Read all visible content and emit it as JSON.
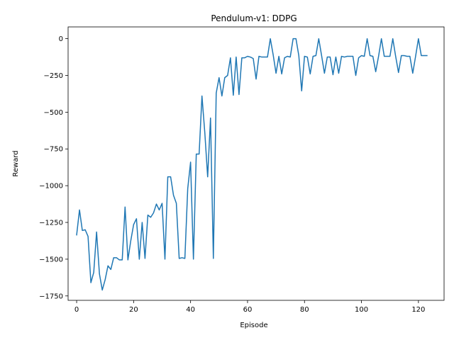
{
  "chart_data": {
    "type": "line",
    "title": "Pendulum-v1: DDPG",
    "xlabel": "Episode",
    "ylabel": "Reward",
    "xlim": [
      -3,
      129
    ],
    "ylim": [
      -1780,
      80
    ],
    "xticks": [
      0,
      20,
      40,
      60,
      80,
      100,
      120
    ],
    "yticks": [
      -1750,
      -1500,
      -1250,
      -1000,
      -750,
      -500,
      -250,
      0
    ],
    "xtick_labels": [
      "0",
      "20",
      "40",
      "60",
      "80",
      "100",
      "120"
    ],
    "ytick_labels": [
      "−1750",
      "−1500",
      "−1250",
      "−1000",
      "−750",
      "−500",
      "−250",
      "0"
    ],
    "grid": false,
    "series": [
      {
        "color": "#1f77b4",
        "x": [
          0,
          1,
          2,
          3,
          4,
          5,
          6,
          7,
          8,
          9,
          10,
          11,
          12,
          13,
          14,
          15,
          16,
          17,
          18,
          19,
          20,
          21,
          22,
          23,
          24,
          25,
          26,
          27,
          28,
          29,
          30,
          31,
          32,
          33,
          34,
          35,
          36,
          37,
          38,
          39,
          40,
          41,
          42,
          43,
          44,
          45,
          46,
          47,
          48,
          49,
          50,
          51,
          52,
          53,
          54,
          55,
          56,
          57,
          58,
          59,
          60,
          61,
          62,
          63,
          64,
          65,
          66,
          67,
          68,
          69,
          70,
          71,
          72,
          73,
          74,
          75,
          76,
          77,
          78,
          79,
          80,
          81,
          82,
          83,
          84,
          85,
          86,
          87,
          88,
          89,
          90,
          91,
          92,
          93,
          94,
          95,
          96,
          97,
          98,
          99,
          100,
          101,
          102,
          103,
          104,
          105,
          106,
          107,
          108,
          109,
          110,
          111,
          112,
          113,
          114,
          115,
          116,
          117,
          118,
          119,
          120,
          121,
          122,
          123
        ],
        "y": [
          -1335,
          -1165,
          -1305,
          -1300,
          -1345,
          -1660,
          -1590,
          -1315,
          -1600,
          -1710,
          -1640,
          -1545,
          -1570,
          -1490,
          -1490,
          -1505,
          -1505,
          -1145,
          -1505,
          -1375,
          -1265,
          -1225,
          -1500,
          -1250,
          -1495,
          -1200,
          -1215,
          -1185,
          -1125,
          -1165,
          -1120,
          -1500,
          -940,
          -940,
          -1065,
          -1120,
          -1495,
          -1490,
          -1495,
          -1020,
          -840,
          -1500,
          -785,
          -785,
          -390,
          -640,
          -940,
          -540,
          -1495,
          -370,
          -265,
          -390,
          -265,
          -250,
          -130,
          -385,
          -125,
          -380,
          -130,
          -130,
          -120,
          -125,
          -135,
          -275,
          -120,
          -125,
          -125,
          -125,
          0,
          -110,
          -235,
          -120,
          -240,
          -130,
          -120,
          -125,
          0,
          0,
          -115,
          -355,
          -120,
          -125,
          -240,
          -120,
          -115,
          0,
          -115,
          -235,
          -125,
          -125,
          -245,
          -125,
          -235,
          -120,
          -125,
          -120,
          -120,
          -120,
          -250,
          -130,
          -115,
          -120,
          0,
          -115,
          -120,
          -225,
          -120,
          0,
          -120,
          -120,
          -120,
          0,
          -120,
          -230,
          -115,
          -115,
          -120,
          -120,
          -235,
          -120,
          0,
          -115,
          -115,
          -115
        ]
      }
    ]
  }
}
